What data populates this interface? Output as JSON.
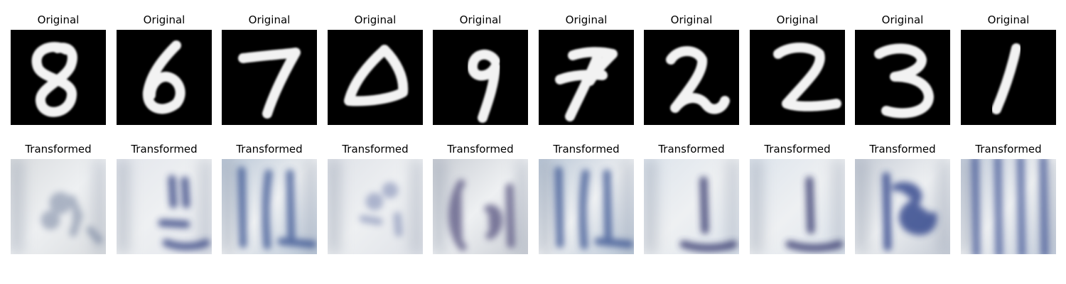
{
  "rows": [
    {
      "label": "Original",
      "images": [
        {
          "content": "handwritten digit 8, white on black"
        },
        {
          "content": "handwritten digit 6, white on black"
        },
        {
          "content": "handwritten digit 7, white on black"
        },
        {
          "content": "handwritten digit 0, white on black"
        },
        {
          "content": "handwritten digit 9, white on black"
        },
        {
          "content": "handwritten digit 7, white on black"
        },
        {
          "content": "handwritten digit 2, white on black"
        },
        {
          "content": "handwritten digit 2, white on black"
        },
        {
          "content": "handwritten digit 3, white on black"
        },
        {
          "content": "handwritten digit 1, white on black"
        }
      ]
    },
    {
      "label": "Transformed",
      "images": [
        {
          "content": "blurry pale blue-grey texture"
        },
        {
          "content": "blurry pale texture with dark blue strokes"
        },
        {
          "content": "blurry blue texture with vertical strokes"
        },
        {
          "content": "blurry pale texture with faint strokes"
        },
        {
          "content": "blurry texture with dark curved stroke"
        },
        {
          "content": "blurry blue texture with vertical strokes"
        },
        {
          "content": "blurry pale texture with dark base stroke"
        },
        {
          "content": "blurry pale texture with dark base stroke"
        },
        {
          "content": "blurry texture with dark blue shape"
        },
        {
          "content": "blurry texture with vertical blue bars"
        }
      ]
    }
  ]
}
